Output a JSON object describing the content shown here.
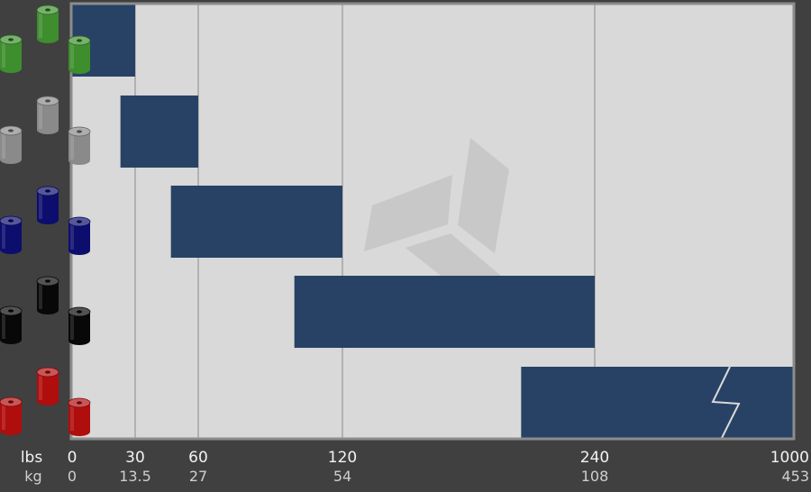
{
  "chart_data": {
    "type": "bar",
    "orientation": "horizontal-range",
    "axis_scale": "piecewise",
    "unit_labels": {
      "primary": "lbs",
      "secondary": "kg"
    },
    "ticks": [
      {
        "lbs": "0",
        "kg": "0"
      },
      {
        "lbs": "30",
        "kg": "13.5"
      },
      {
        "lbs": "60",
        "kg": "27"
      },
      {
        "lbs": "120",
        "kg": "54"
      },
      {
        "lbs": "240",
        "kg": "108"
      },
      {
        "lbs": "1000",
        "kg": "453"
      }
    ],
    "xlim": [
      0,
      1000
    ],
    "grid": true,
    "axis_break": "on last bar, between 240 and 1000",
    "categories": [
      "green",
      "gray",
      "blue",
      "black",
      "red"
    ],
    "bar_color": "#284265",
    "plot_background": "#d9d9d9",
    "page_background": "#404040",
    "ranges": [
      {
        "category": "green",
        "color": "#3e8e2e",
        "range_lbs": [
          0,
          30
        ]
      },
      {
        "category": "gray",
        "color": "#8a8a8a",
        "range_lbs": [
          23,
          60
        ]
      },
      {
        "category": "blue",
        "color": "#0d0d6e",
        "range_lbs": [
          47,
          120
        ]
      },
      {
        "category": "black",
        "color": "#080808",
        "range_lbs": [
          100,
          240
        ]
      },
      {
        "category": "red",
        "color": "#b00d0d",
        "range_lbs": [
          205,
          1000
        ]
      }
    ]
  },
  "decorations": {
    "spring_icons": "colored spring cylinders",
    "watermark": "three-panel logo mark"
  }
}
